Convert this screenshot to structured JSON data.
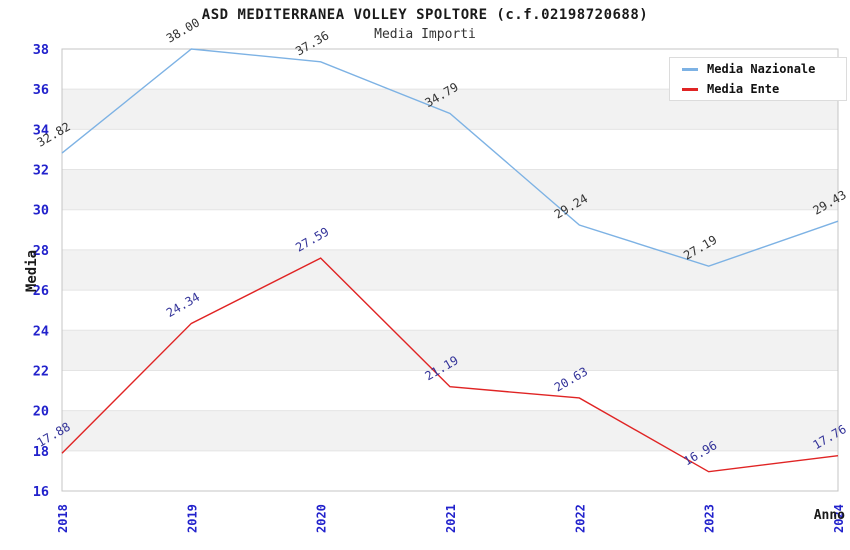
{
  "title": "ASD MEDITERRANEA VOLLEY SPOLTORE (c.f.02198720688)",
  "subtitle": "Media Importi",
  "legend": {
    "items": [
      {
        "label": "Media Nazionale"
      },
      {
        "label": "Media Ente"
      }
    ]
  },
  "chart_data": {
    "type": "line",
    "title": "ASD MEDITERRANEA VOLLEY SPOLTORE (c.f.02198720688)",
    "subtitle": "Media Importi",
    "xlabel": "Anno",
    "ylabel": "Media",
    "x_categories": [
      "2018",
      "2019",
      "2020",
      "2021",
      "2022",
      "2023",
      "2024"
    ],
    "series": [
      {
        "name": "Media Nazionale",
        "color": "#7db2e4",
        "label_color": "#333333",
        "values": [
          32.82,
          38.0,
          37.36,
          34.79,
          29.24,
          27.19,
          29.43
        ]
      },
      {
        "name": "Media Ente",
        "color": "#e02424",
        "label_color": "#333399",
        "values": [
          17.88,
          24.34,
          27.59,
          21.19,
          20.63,
          16.96,
          17.76
        ]
      }
    ],
    "ylim": [
      16,
      38
    ],
    "ytick_step": 2,
    "yticks": [
      16,
      18,
      20,
      22,
      24,
      26,
      28,
      30,
      32,
      34,
      36,
      38
    ],
    "value_label_decimals": 2,
    "grid": "horizontal",
    "background_bands": true,
    "legend_position": "top-right",
    "colors": {
      "tick_label": "#2222cc",
      "band": "#f2f2f2",
      "gridline": "#e4e4e4",
      "plot_border": "#c4c4c4"
    }
  }
}
